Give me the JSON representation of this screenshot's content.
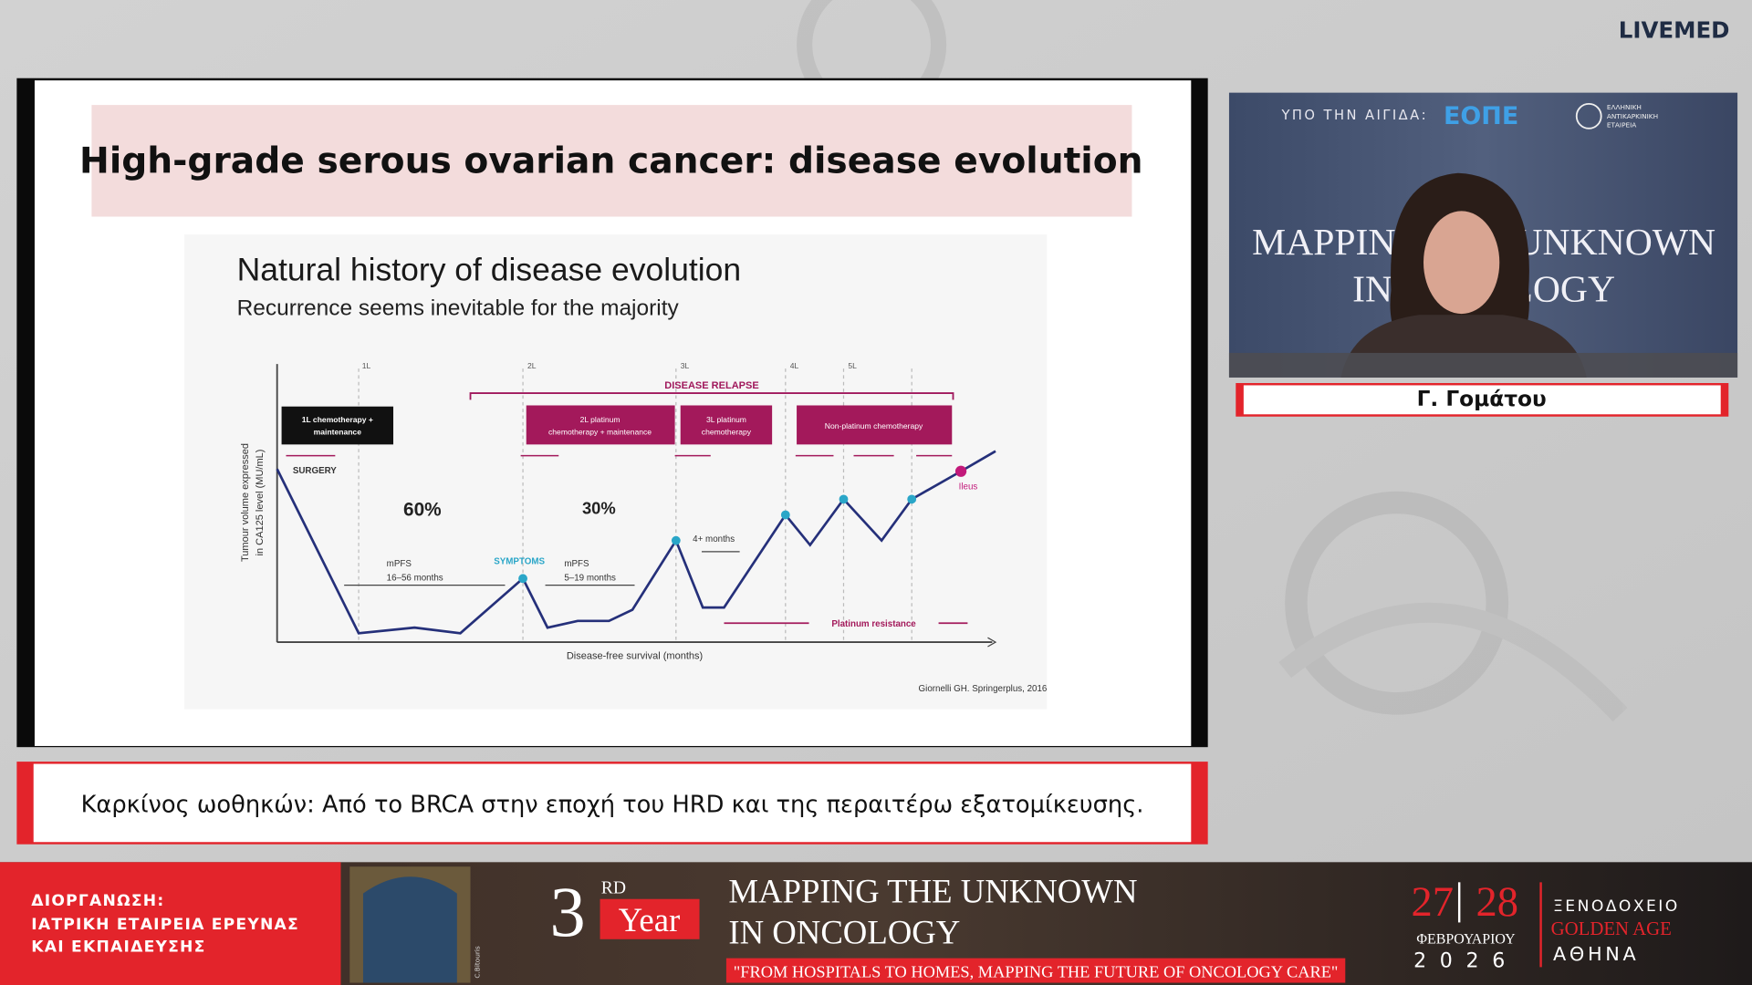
{
  "header": {
    "logo": "LIVEMED"
  },
  "slide": {
    "title": "High-grade serous ovarian cancer: disease evolution",
    "figure": {
      "title": "Natural history of disease evolution",
      "subtitle": "Recurrence seems inevitable for the majority",
      "y_axis_label": [
        "Tumour volume expressed",
        "in CA125 level (MU/mL)"
      ],
      "x_axis_label": "Disease-free survival (months)",
      "lines": [
        "1L",
        "2L",
        "3L",
        "4L",
        "5L"
      ],
      "relapse_label": "DISEASE RELAPSE",
      "boxes": [
        [
          "1L chemotherapy +",
          "maintenance"
        ],
        [
          "2L platinum",
          "chemotherapy + maintenance"
        ],
        [
          "3L platinum",
          "chemotherapy"
        ],
        [
          "Non-platinum chemotherapy"
        ]
      ],
      "surgery": "SURGERY",
      "first_share": "60%",
      "second_share": "30%",
      "first_pfs": [
        "mPFS",
        "16–56 months"
      ],
      "symptoms": "SYMPTOMS",
      "second_pfs": [
        "mPFS",
        "5–19 months"
      ],
      "interval": "4+ months",
      "resistance": "Platinum resistance",
      "ileus": "Ileus",
      "source": "Giornelli GH. Springerplus, 2016"
    }
  },
  "caption": "Καρκίνος ωοθηκών: Από το BRCA στην εποχή του HRD και της περαιτέρω εξατομίκευσης.",
  "speaker": {
    "name": "Γ. Γομάτου",
    "backdrop": {
      "auspices": "ΥΠΟ ΤΗΝ ΑΙΓΙΔΑ:",
      "sponsor": "ΕΟΠΕ",
      "society": [
        "ΕΛΛΗΝΙΚΗ",
        "ΑΝΤΙΚΑΡΚΙΝΙΚΗ",
        "ΕΤΑΙΡΕΙΑ"
      ],
      "title": [
        "MAPPING THE UNKNOWN",
        "IN ONCOLOGY"
      ]
    }
  },
  "banner": {
    "organizer_label": "ΔΙΟΡΓΑΝΩΣΗ:",
    "organizer": [
      "ΙΑΤΡΙΚΗ ΕΤΑΙΡΕΙΑ ΕΡΕΥΝΑΣ",
      "ΚΑΙ ΕΚΠΑΙΔΕΥΣΗΣ"
    ],
    "artist": "C.Bitouris",
    "edition_number": "3",
    "edition_suffix": "RD",
    "edition_word": "Year",
    "event_title": [
      "MAPPING THE UNKNOWN",
      "IN ONCOLOGY"
    ],
    "tagline": "\"FROM HOSPITALS TO HOMES, MAPPING THE FUTURE OF ONCOLOGY CARE\"",
    "dates": [
      "27",
      "28"
    ],
    "month": "ΦΕΒΡΟΥΑΡΙΟΥ",
    "year": "2026",
    "venue": [
      "ΞΕΝΟΔΟΧΕΙΟ",
      "GOLDEN AGE",
      "ΑΘΗΝΑ"
    ]
  }
}
